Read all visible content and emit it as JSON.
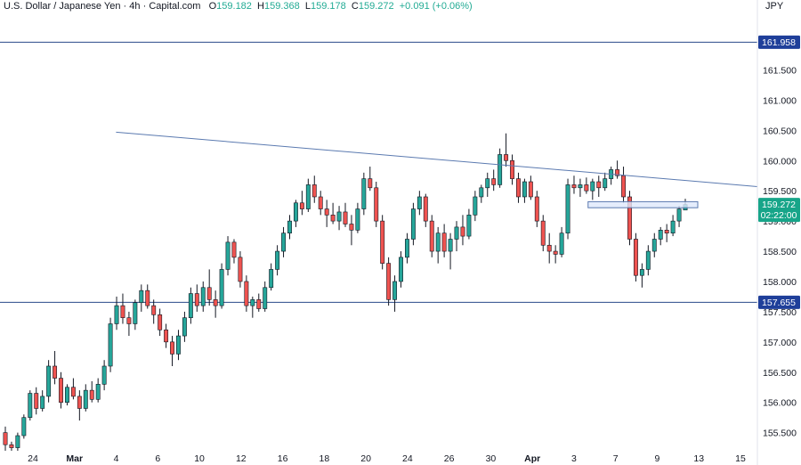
{
  "header": {
    "symbol": "U.S. Dollar / Japanese Yen",
    "timeframe": "4h",
    "source": "Capital.com",
    "open_label": "O",
    "open": "159.182",
    "high_label": "H",
    "high": "159.368",
    "low_label": "L",
    "low": "159.178",
    "close_label": "C",
    "close": "159.272",
    "change": "+0.091 (+0.06%)",
    "currency": "JPY"
  },
  "colors": {
    "up": "#26a69a",
    "down": "#ef5350",
    "wick": "#131722",
    "level_line": "#2a4a8a",
    "trend_line": "#5b7ab0",
    "zone_fill": "#dfe8fb",
    "zone_stroke": "#5b7ab0",
    "tag_blue": "#1f3f9a",
    "tag_green": "#17a589"
  },
  "chart_data": {
    "type": "candlestick",
    "y_range": [
      155.2,
      162.45
    ],
    "y_ticks": [
      "155.500",
      "156.000",
      "156.500",
      "157.000",
      "157.500",
      "158.000",
      "158.500",
      "159.000",
      "159.500",
      "160.000",
      "160.500",
      "161.000",
      "161.500"
    ],
    "y_tick_values": [
      155.5,
      156.0,
      156.5,
      157.0,
      157.5,
      158.0,
      158.5,
      159.0,
      159.5,
      160.0,
      160.5,
      161.0,
      161.5
    ],
    "x_ticks": [
      "24",
      "Mar",
      "4",
      "6",
      "10",
      "12",
      "16",
      "18",
      "20",
      "24",
      "26",
      "30",
      "Apr",
      "3",
      "7",
      "9",
      "13",
      "15"
    ],
    "x_tick_bold": [
      false,
      true,
      false,
      false,
      false,
      false,
      false,
      false,
      false,
      false,
      false,
      false,
      true,
      false,
      false,
      false,
      false,
      false
    ],
    "levels": [
      {
        "price": 161.958,
        "label": "161.958"
      },
      {
        "price": 157.655,
        "label": "157.655"
      }
    ],
    "current_price": {
      "price": 159.272,
      "label": "159.272",
      "countdown": "02:22:00"
    },
    "trendline": {
      "from": {
        "bar": 0.1,
        "price": 160.47
      },
      "to": {
        "bar": 1.0,
        "price": 159.57
      }
    },
    "zone": {
      "price_high": 159.32,
      "price_low": 159.22
    },
    "ohlc": [
      [
        155.5,
        155.6,
        155.2,
        155.3
      ],
      [
        155.3,
        155.35,
        155.2,
        155.25
      ],
      [
        155.25,
        155.5,
        155.2,
        155.45
      ],
      [
        155.45,
        155.8,
        155.4,
        155.75
      ],
      [
        155.75,
        156.2,
        155.7,
        156.15
      ],
      [
        156.15,
        156.25,
        155.8,
        155.9
      ],
      [
        155.9,
        156.2,
        155.85,
        156.1
      ],
      [
        156.1,
        156.7,
        156.0,
        156.6
      ],
      [
        156.6,
        156.85,
        156.3,
        156.4
      ],
      [
        156.4,
        156.5,
        155.9,
        156.0
      ],
      [
        156.0,
        156.3,
        155.95,
        156.25
      ],
      [
        156.25,
        156.4,
        156.05,
        156.1
      ],
      [
        156.1,
        156.2,
        155.7,
        155.9
      ],
      [
        155.9,
        156.3,
        155.85,
        156.2
      ],
      [
        156.2,
        156.35,
        156.0,
        156.05
      ],
      [
        156.05,
        156.4,
        156.0,
        156.3
      ],
      [
        156.3,
        156.7,
        156.2,
        156.6
      ],
      [
        156.6,
        157.4,
        156.5,
        157.3
      ],
      [
        157.3,
        157.75,
        157.2,
        157.6
      ],
      [
        157.6,
        157.8,
        157.3,
        157.4
      ],
      [
        157.4,
        157.5,
        157.1,
        157.3
      ],
      [
        157.3,
        157.7,
        157.2,
        157.65
      ],
      [
        157.65,
        157.95,
        157.5,
        157.85
      ],
      [
        157.85,
        157.95,
        157.55,
        157.6
      ],
      [
        157.6,
        157.7,
        157.3,
        157.45
      ],
      [
        157.45,
        157.55,
        157.1,
        157.2
      ],
      [
        157.2,
        157.3,
        156.9,
        157.0
      ],
      [
        157.0,
        157.1,
        156.6,
        156.8
      ],
      [
        156.8,
        157.2,
        156.7,
        157.1
      ],
      [
        157.1,
        157.5,
        157.0,
        157.4
      ],
      [
        157.4,
        157.9,
        157.3,
        157.8
      ],
      [
        157.8,
        157.95,
        157.5,
        157.6
      ],
      [
        157.6,
        158.0,
        157.5,
        157.9
      ],
      [
        157.9,
        158.2,
        157.6,
        157.7
      ],
      [
        157.7,
        157.85,
        157.4,
        157.6
      ],
      [
        157.6,
        158.3,
        157.55,
        158.2
      ],
      [
        158.2,
        158.75,
        158.1,
        158.65
      ],
      [
        158.65,
        158.7,
        158.3,
        158.4
      ],
      [
        158.4,
        158.5,
        157.9,
        158.0
      ],
      [
        158.0,
        158.1,
        157.5,
        157.6
      ],
      [
        157.6,
        157.75,
        157.4,
        157.7
      ],
      [
        157.7,
        157.8,
        157.5,
        157.55
      ],
      [
        157.55,
        158.0,
        157.5,
        157.9
      ],
      [
        157.9,
        158.3,
        157.85,
        158.2
      ],
      [
        158.2,
        158.6,
        158.1,
        158.5
      ],
      [
        158.5,
        158.9,
        158.4,
        158.8
      ],
      [
        158.8,
        159.1,
        158.7,
        159.0
      ],
      [
        159.0,
        159.35,
        158.9,
        159.3
      ],
      [
        159.3,
        159.5,
        159.1,
        159.2
      ],
      [
        159.2,
        159.7,
        159.15,
        159.6
      ],
      [
        159.6,
        159.75,
        159.3,
        159.4
      ],
      [
        159.4,
        159.5,
        159.1,
        159.2
      ],
      [
        159.2,
        159.35,
        158.9,
        159.1
      ],
      [
        159.1,
        159.3,
        158.95,
        159.0
      ],
      [
        159.0,
        159.25,
        158.85,
        159.15
      ],
      [
        159.15,
        159.3,
        158.9,
        158.95
      ],
      [
        158.95,
        159.1,
        158.6,
        158.85
      ],
      [
        158.85,
        159.3,
        158.8,
        159.2
      ],
      [
        159.2,
        159.8,
        159.1,
        159.7
      ],
      [
        159.7,
        159.9,
        159.5,
        159.55
      ],
      [
        159.55,
        159.65,
        158.9,
        159.0
      ],
      [
        159.0,
        159.1,
        158.2,
        158.3
      ],
      [
        158.3,
        158.4,
        157.6,
        157.7
      ],
      [
        157.7,
        158.1,
        157.5,
        158.0
      ],
      [
        158.0,
        158.5,
        157.9,
        158.4
      ],
      [
        158.4,
        158.8,
        158.3,
        158.7
      ],
      [
        158.7,
        159.3,
        158.6,
        159.2
      ],
      [
        159.2,
        159.5,
        159.1,
        159.4
      ],
      [
        159.4,
        159.45,
        158.9,
        159.0
      ],
      [
        159.0,
        159.1,
        158.4,
        158.5
      ],
      [
        158.5,
        158.9,
        158.3,
        158.8
      ],
      [
        158.8,
        158.95,
        158.4,
        158.5
      ],
      [
        158.5,
        158.8,
        158.2,
        158.7
      ],
      [
        158.7,
        159.0,
        158.5,
        158.9
      ],
      [
        158.9,
        159.1,
        158.6,
        158.75
      ],
      [
        158.75,
        159.2,
        158.7,
        159.1
      ],
      [
        159.1,
        159.5,
        159.0,
        159.4
      ],
      [
        159.4,
        159.6,
        159.3,
        159.55
      ],
      [
        159.55,
        159.8,
        159.4,
        159.7
      ],
      [
        159.7,
        159.85,
        159.5,
        159.6
      ],
      [
        159.6,
        160.2,
        159.55,
        160.1
      ],
      [
        160.1,
        160.45,
        159.9,
        160.0
      ],
      [
        160.0,
        160.1,
        159.6,
        159.7
      ],
      [
        159.7,
        159.8,
        159.3,
        159.4
      ],
      [
        159.4,
        159.7,
        159.3,
        159.65
      ],
      [
        159.65,
        159.75,
        159.35,
        159.4
      ],
      [
        159.4,
        159.5,
        158.9,
        159.0
      ],
      [
        159.0,
        159.1,
        158.5,
        158.6
      ],
      [
        158.6,
        158.8,
        158.3,
        158.5
      ],
      [
        158.5,
        158.6,
        158.3,
        158.45
      ],
      [
        158.45,
        158.9,
        158.4,
        158.8
      ],
      [
        158.8,
        159.7,
        158.7,
        159.6
      ],
      [
        159.6,
        159.75,
        159.45,
        159.55
      ],
      [
        159.55,
        159.7,
        159.4,
        159.6
      ],
      [
        159.6,
        159.72,
        159.45,
        159.5
      ],
      [
        159.5,
        159.7,
        159.35,
        159.65
      ],
      [
        159.65,
        159.75,
        159.4,
        159.55
      ],
      [
        159.55,
        159.8,
        159.5,
        159.7
      ],
      [
        159.7,
        159.9,
        159.6,
        159.85
      ],
      [
        159.85,
        160.0,
        159.7,
        159.75
      ],
      [
        159.75,
        159.9,
        159.3,
        159.4
      ],
      [
        159.4,
        159.5,
        158.6,
        158.7
      ],
      [
        158.7,
        158.8,
        158.0,
        158.1
      ],
      [
        158.1,
        158.3,
        157.9,
        158.2
      ],
      [
        158.2,
        158.6,
        158.1,
        158.5
      ],
      [
        158.5,
        158.8,
        158.4,
        158.7
      ],
      [
        158.7,
        158.9,
        158.6,
        158.85
      ],
      [
        158.85,
        158.95,
        158.65,
        158.8
      ],
      [
        158.8,
        159.1,
        158.75,
        159.0
      ],
      [
        159.0,
        159.25,
        158.9,
        159.2
      ],
      [
        159.182,
        159.368,
        159.178,
        159.272
      ]
    ]
  }
}
